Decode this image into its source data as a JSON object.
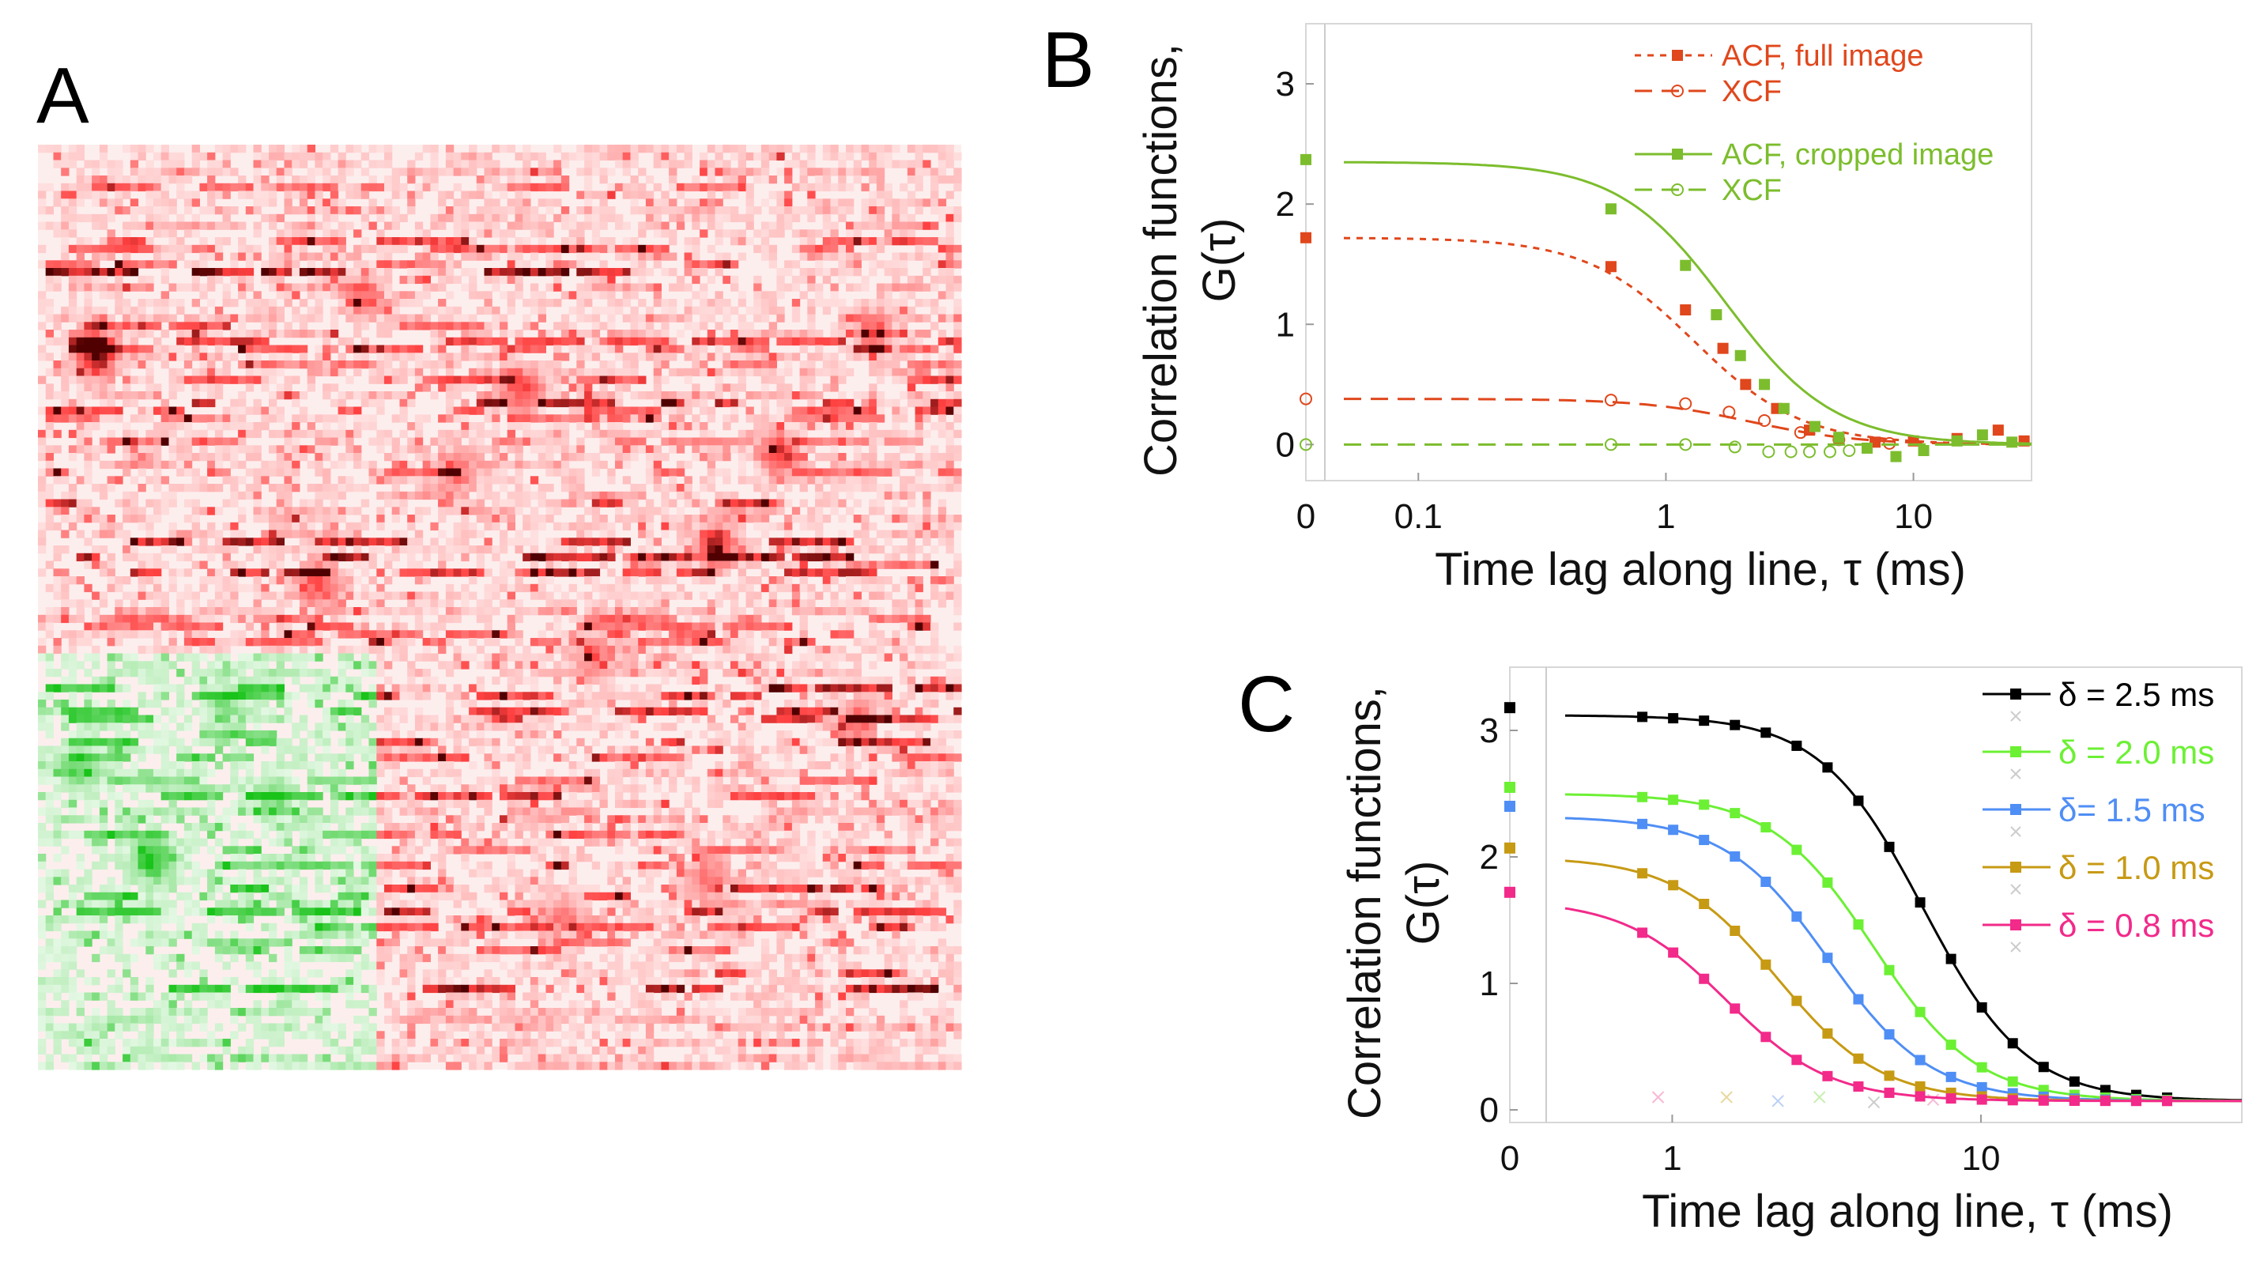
{
  "panels": {
    "a": {
      "letter": "A"
    },
    "b": {
      "letter": "B"
    },
    "c": {
      "letter": "C"
    }
  },
  "chart_data": [
    {
      "panel": "B",
      "type": "line",
      "xscale": "log (zero shown as separate point)",
      "xlabel": "Time lag along line, τ (ms)",
      "ylabel_line1": "Correlation functions,",
      "ylabel_line2": "G(τ)",
      "xlim": [
        0.05,
        30
      ],
      "ylim": [
        -0.3,
        3.5
      ],
      "xticks": [
        {
          "value": 0.1,
          "label": "0.1"
        },
        {
          "value": 1,
          "label": "1"
        },
        {
          "value": 10,
          "label": "10"
        }
      ],
      "zero_tick_label": "0",
      "yticks": [
        {
          "value": 0,
          "label": "0"
        },
        {
          "value": 1,
          "label": "1"
        },
        {
          "value": 2,
          "label": "2"
        },
        {
          "value": 3,
          "label": "3"
        }
      ],
      "legend_position": "top-right",
      "series": [
        {
          "name": "ACF, full image",
          "color": "#e0471c",
          "marker": "square",
          "line": "dotted",
          "fit": {
            "g0": 1.72,
            "tau_d": 1.3,
            "k": 2.0
          },
          "points": [
            {
              "x": 0,
              "y": 1.72
            },
            {
              "x": 0.6,
              "y": 1.48
            },
            {
              "x": 1.2,
              "y": 1.12
            },
            {
              "x": 1.7,
              "y": 0.8
            },
            {
              "x": 2.1,
              "y": 0.5
            },
            {
              "x": 2.8,
              "y": 0.3
            },
            {
              "x": 3.8,
              "y": 0.12
            },
            {
              "x": 5,
              "y": 0.05
            },
            {
              "x": 7,
              "y": 0.02
            },
            {
              "x": 10,
              "y": 0.03
            },
            {
              "x": 15,
              "y": 0.05
            },
            {
              "x": 22,
              "y": 0.12
            },
            {
              "x": 28,
              "y": 0.03
            }
          ]
        },
        {
          "name": "XCF",
          "color": "#e0471c",
          "marker": "circle",
          "line": "dashed",
          "fit": {
            "g0": 0.38,
            "tau_d": 2.2,
            "k": 2.0
          },
          "points": [
            {
              "x": 0,
              "y": 0.38
            },
            {
              "x": 0.6,
              "y": 0.37
            },
            {
              "x": 1.2,
              "y": 0.34
            },
            {
              "x": 1.8,
              "y": 0.27
            },
            {
              "x": 2.5,
              "y": 0.2
            },
            {
              "x": 3.5,
              "y": 0.1
            },
            {
              "x": 5,
              "y": 0.04
            },
            {
              "x": 8,
              "y": 0.01
            }
          ]
        },
        {
          "name": "ACF, cropped image",
          "color": "#7cbd2d",
          "marker": "square",
          "line": "solid",
          "fit": {
            "g0": 2.35,
            "tau_d": 1.75,
            "k": 2.0
          },
          "points": [
            {
              "x": 0,
              "y": 2.37
            },
            {
              "x": 0.6,
              "y": 1.96
            },
            {
              "x": 1.2,
              "y": 1.49
            },
            {
              "x": 1.6,
              "y": 1.08
            },
            {
              "x": 2.0,
              "y": 0.74
            },
            {
              "x": 2.5,
              "y": 0.5
            },
            {
              "x": 3.0,
              "y": 0.3
            },
            {
              "x": 4.0,
              "y": 0.15
            },
            {
              "x": 5.0,
              "y": 0.06
            },
            {
              "x": 6.5,
              "y": -0.03
            },
            {
              "x": 8.5,
              "y": -0.1
            },
            {
              "x": 11,
              "y": -0.05
            },
            {
              "x": 15,
              "y": 0.03
            },
            {
              "x": 19,
              "y": 0.08
            },
            {
              "x": 25,
              "y": 0.02
            }
          ]
        },
        {
          "name": "XCF",
          "color": "#7cbd2d",
          "marker": "circle",
          "line": "dashed",
          "fit": {
            "g0": 0.0,
            "tau_d": 1.0,
            "k": 2.0
          },
          "points": [
            {
              "x": 0,
              "y": 0.0
            },
            {
              "x": 0.6,
              "y": 0.0
            },
            {
              "x": 1.2,
              "y": 0.0
            },
            {
              "x": 1.9,
              "y": -0.02
            },
            {
              "x": 2.6,
              "y": -0.06
            },
            {
              "x": 3.2,
              "y": -0.06
            },
            {
              "x": 3.8,
              "y": -0.06
            },
            {
              "x": 4.6,
              "y": -0.06
            },
            {
              "x": 5.5,
              "y": -0.05
            }
          ]
        }
      ]
    },
    {
      "panel": "C",
      "type": "line",
      "xscale": "log (zero shown as separate point)",
      "xlabel": "Time lag along line, τ (ms)",
      "ylabel_line1": "Correlation functions,",
      "ylabel_line2": "G(τ)",
      "xlim": [
        0.45,
        70
      ],
      "ylim": [
        -0.1,
        3.5
      ],
      "xticks": [
        {
          "value": 1,
          "label": "1"
        },
        {
          "value": 10,
          "label": "10"
        }
      ],
      "zero_tick_label": "0",
      "yticks": [
        {
          "value": 0,
          "label": "0"
        },
        {
          "value": 1,
          "label": "1"
        },
        {
          "value": 2,
          "label": "2"
        },
        {
          "value": 3,
          "label": "3"
        }
      ],
      "legend_position": "top-right",
      "series": [
        {
          "name": "δ = 2.5 ms",
          "color": "#000000",
          "g0_point": 3.18,
          "fit": {
            "g0": 3.12,
            "tau_d": 6.5,
            "k": 2.6,
            "base": 0.07
          }
        },
        {
          "name": "δ = 2.0 ms",
          "color": "#6cf034",
          "g0_point": 2.55,
          "fit": {
            "g0": 2.5,
            "tau_d": 4.5,
            "k": 2.6,
            "base": 0.07
          }
        },
        {
          "name": "δ= 1.5 ms",
          "color": "#4f8ef5",
          "g0_point": 2.4,
          "fit": {
            "g0": 2.32,
            "tau_d": 3.2,
            "k": 2.6,
            "base": 0.07
          }
        },
        {
          "name": "δ = 1.0 ms",
          "color": "#c79a14",
          "g0_point": 2.07,
          "fit": {
            "g0": 2.0,
            "tau_d": 2.2,
            "k": 2.6,
            "base": 0.07
          }
        },
        {
          "name": "δ = 0.8 ms",
          "color": "#f22a8a",
          "g0_point": 1.72,
          "fit": {
            "g0": 1.66,
            "tau_d": 1.5,
            "k": 2.6,
            "base": 0.07
          }
        }
      ],
      "xcf_points": [
        {
          "x": 0.9,
          "y": 0.1
        },
        {
          "x": 1.5,
          "y": 0.1
        },
        {
          "x": 2.2,
          "y": 0.07
        },
        {
          "x": 3.0,
          "y": 0.1
        },
        {
          "x": 4.5,
          "y": 0.06
        },
        {
          "x": 7,
          "y": 0.08
        }
      ]
    }
  ]
}
